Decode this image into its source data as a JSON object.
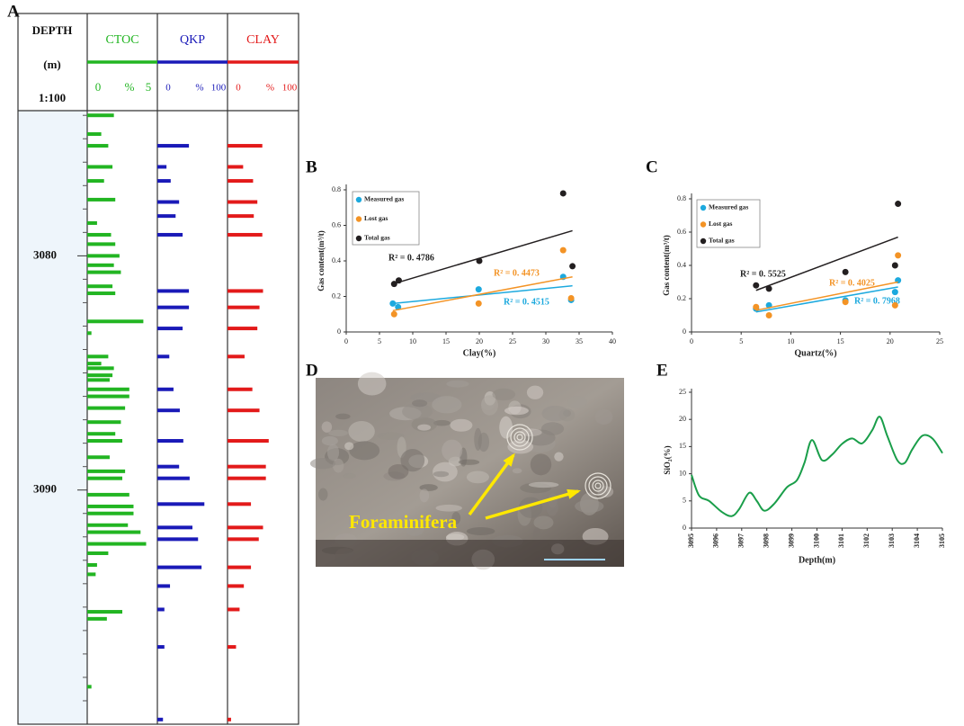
{
  "chart_data": [
    {
      "type": "well-log",
      "panel": "A",
      "depth_header": [
        "DEPTH",
        "(m)",
        "1:100"
      ],
      "ylim": [
        3073.8,
        3100
      ],
      "yticks": [
        3080,
        3090
      ],
      "yticks_minor": [
        3074,
        3075,
        3076,
        3077,
        3078,
        3079,
        3081,
        3082,
        3083,
        3084,
        3085,
        3086,
        3087,
        3088,
        3089,
        3091,
        3092,
        3093,
        3094,
        3095,
        3096,
        3097,
        3098,
        3099
      ],
      "tracks": [
        {
          "name": "CTOC",
          "color": "#22b522",
          "unit": "%",
          "xlim": [
            0,
            5
          ],
          "xticks": [
            0,
            5
          ],
          "depths": [
            3074.0,
            3074.8,
            3075.3,
            3076.2,
            3076.8,
            3077.6,
            3078.6,
            3079.1,
            3079.5,
            3080.0,
            3080.4,
            3080.7,
            3081.3,
            3081.6,
            3082.8,
            3083.3,
            3084.3,
            3084.6,
            3084.8,
            3085.1,
            3085.3,
            3085.7,
            3086.0,
            3086.5,
            3087.1,
            3087.6,
            3087.9,
            3088.6,
            3089.2,
            3089.5,
            3090.2,
            3090.7,
            3091.0,
            3091.5,
            3091.8,
            3092.3,
            3092.7,
            3093.2,
            3093.6,
            3095.2,
            3095.5,
            3098.4
          ],
          "values": [
            1.9,
            1.0,
            1.5,
            1.8,
            1.2,
            2.0,
            0.7,
            1.7,
            2.0,
            2.3,
            1.9,
            2.4,
            1.8,
            2.0,
            4.0,
            0.3,
            1.5,
            1.0,
            1.9,
            1.8,
            1.6,
            3.0,
            3.0,
            2.7,
            2.4,
            2.0,
            2.5,
            1.6,
            2.7,
            2.5,
            3.0,
            3.3,
            3.3,
            2.9,
            3.8,
            4.2,
            1.5,
            0.7,
            0.6,
            2.5,
            1.4,
            0.3
          ]
        },
        {
          "name": "QKP",
          "color": "#1a1ab8",
          "unit": "%",
          "xlim": [
            0,
            100
          ],
          "xticks": [
            0,
            100
          ],
          "depths": [
            3075.3,
            3076.2,
            3076.8,
            3077.7,
            3078.3,
            3079.1,
            3081.5,
            3082.2,
            3083.1,
            3084.3,
            3085.7,
            3086.6,
            3087.9,
            3089.0,
            3089.5,
            3090.6,
            3091.6,
            3092.1,
            3093.3,
            3094.1,
            3095.1,
            3096.7,
            3099.8
          ],
          "values": [
            45,
            13,
            19,
            31,
            26,
            36,
            45,
            45,
            36,
            17,
            23,
            32,
            37,
            31,
            46,
            67,
            50,
            58,
            63,
            18,
            10,
            10,
            8
          ]
        },
        {
          "name": "CLAY",
          "color": "#e31a1a",
          "unit": "%",
          "xlim": [
            0,
            100
          ],
          "xticks": [
            0,
            100
          ],
          "depths": [
            3075.3,
            3076.2,
            3076.8,
            3077.7,
            3078.3,
            3079.1,
            3081.5,
            3082.2,
            3083.1,
            3084.3,
            3085.7,
            3086.6,
            3087.9,
            3089.0,
            3089.5,
            3090.6,
            3091.6,
            3092.1,
            3093.3,
            3094.1,
            3095.1,
            3096.7,
            3099.8
          ],
          "values": [
            49,
            22,
            36,
            42,
            37,
            49,
            50,
            45,
            42,
            24,
            35,
            45,
            58,
            54,
            54,
            33,
            50,
            44,
            33,
            23,
            17,
            12,
            5
          ]
        }
      ]
    },
    {
      "type": "scatter",
      "panel": "B",
      "xlabel": "Clay(%)",
      "ylabel": "Gas content(m³/t)",
      "xlim": [
        0,
        40
      ],
      "xticks": [
        0,
        5,
        10,
        15,
        20,
        25,
        30,
        35,
        40
      ],
      "ylim": [
        0,
        0.8
      ],
      "yticks": [
        0,
        0.2,
        0.4,
        0.6,
        0.8
      ],
      "series": [
        {
          "name": "Measured gas",
          "color": "#1ca9de",
          "x": [
            7.0,
            7.8,
            19.9,
            32.6,
            33.8
          ],
          "values": [
            0.16,
            0.14,
            0.24,
            0.31,
            0.18
          ],
          "trend": {
            "x": [
              7.0,
              34
            ],
            "values": [
              0.16,
              0.26
            ],
            "label": "R² = 0. 4515"
          }
        },
        {
          "name": "Lost gas",
          "color": "#f39325",
          "x": [
            7.2,
            19.9,
            32.6,
            33.8
          ],
          "values": [
            0.1,
            0.16,
            0.46,
            0.19
          ],
          "trend": {
            "x": [
              7.0,
              34
            ],
            "values": [
              0.12,
              0.31
            ],
            "label": "R² = 0. 4473"
          }
        },
        {
          "name": "Total gas",
          "color": "#231f20",
          "x": [
            7.2,
            7.9,
            20.0,
            32.6,
            34.0
          ],
          "values": [
            0.27,
            0.29,
            0.4,
            0.78,
            0.37
          ],
          "trend": {
            "x": [
              7.0,
              34
            ],
            "values": [
              0.27,
              0.57
            ],
            "label": "R² = 0. 4786"
          }
        }
      ]
    },
    {
      "type": "scatter",
      "panel": "C",
      "xlabel": "Quartz(%)",
      "ylabel": "Gas content(m³/t)",
      "xlim": [
        0,
        25
      ],
      "xticks": [
        0,
        5,
        10,
        15,
        20,
        25
      ],
      "ylim": [
        0,
        0.8
      ],
      "yticks": [
        0,
        0.2,
        0.4,
        0.6,
        0.8
      ],
      "series": [
        {
          "name": "Measured gas",
          "color": "#1ca9de",
          "x": [
            6.5,
            7.8,
            15.5,
            20.5,
            20.8
          ],
          "values": [
            0.14,
            0.16,
            0.19,
            0.24,
            0.31
          ],
          "trend": {
            "x": [
              6.5,
              20.8
            ],
            "values": [
              0.12,
              0.27
            ],
            "label": "R² = 0. 7968"
          }
        },
        {
          "name": "Lost gas",
          "color": "#f39325",
          "x": [
            6.5,
            7.8,
            15.5,
            20.5,
            20.8
          ],
          "values": [
            0.15,
            0.1,
            0.18,
            0.16,
            0.46
          ],
          "trend": {
            "x": [
              6.5,
              20.8
            ],
            "values": [
              0.13,
              0.3
            ],
            "label": "R² = 0. 4025"
          }
        },
        {
          "name": "Total gas",
          "color": "#231f20",
          "x": [
            6.5,
            7.8,
            15.5,
            20.5,
            20.8
          ],
          "values": [
            0.28,
            0.26,
            0.36,
            0.4,
            0.77
          ],
          "trend": {
            "x": [
              6.5,
              20.8
            ],
            "values": [
              0.25,
              0.57
            ],
            "label": "R² = 0. 5525"
          }
        }
      ]
    },
    {
      "type": "image",
      "panel": "D",
      "annotation": "Foraminifera"
    },
    {
      "type": "line",
      "panel": "E",
      "xlabel": "Depth(m)",
      "ylabel": "SiO₂(%)",
      "color": "#1a9e4a",
      "xlim": [
        3095,
        3105
      ],
      "xticks": [
        3095,
        3096,
        3097,
        3098,
        3099,
        3100,
        3101,
        3102,
        3103,
        3104,
        3105
      ],
      "ylim": [
        0,
        25
      ],
      "yticks": [
        0,
        5,
        10,
        15,
        20,
        25
      ],
      "x": [
        3095,
        3095.3,
        3095.7,
        3096.2,
        3096.6,
        3096.9,
        3097.3,
        3097.6,
        3097.9,
        3098.3,
        3098.8,
        3099.2,
        3099.5,
        3099.8,
        3100.2,
        3100.6,
        3101,
        3101.4,
        3101.8,
        3102.2,
        3102.5,
        3102.8,
        3103.2,
        3103.5,
        3103.8,
        3104.2,
        3104.6,
        3105
      ],
      "values": [
        9.8,
        6,
        5,
        3,
        2.2,
        3.5,
        6.5,
        5,
        3.2,
        4.5,
        7.5,
        8.8,
        12,
        16.2,
        12.5,
        13.5,
        15.5,
        16.5,
        15.6,
        18,
        20.5,
        17,
        12.5,
        12,
        14.5,
        17,
        16.5,
        13.8
      ]
    }
  ]
}
